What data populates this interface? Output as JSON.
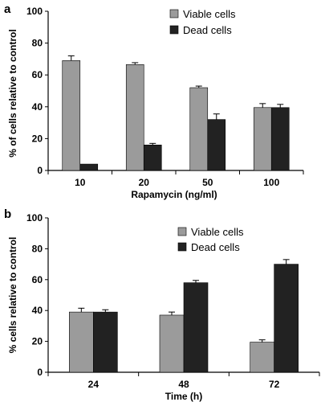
{
  "chart_data": [
    {
      "type": "bar",
      "panel_label": "a",
      "categories": [
        "10",
        "20",
        "50",
        "100"
      ],
      "series": [
        {
          "name": "Viable cells",
          "values": [
            69,
            66.5,
            52,
            39.5
          ],
          "errors": [
            3,
            1.2,
            1,
            2.5
          ],
          "color": "#9b9b9b"
        },
        {
          "name": "Dead cells",
          "values": [
            4,
            16,
            32,
            39.5
          ],
          "errors": [
            0,
            1,
            3.5,
            2
          ],
          "color": "#222222"
        }
      ],
      "xlabel": "Rapamycin (ng/ml)",
      "ylabel": "% of cells relative to control",
      "ylim": [
        0,
        100
      ],
      "yticks": [
        0,
        20,
        40,
        60,
        80,
        100
      ],
      "legend": "top-right",
      "grid": false
    },
    {
      "type": "bar",
      "panel_label": "b",
      "categories": [
        "24",
        "48",
        "72"
      ],
      "series": [
        {
          "name": "Viable cells",
          "values": [
            39,
            37,
            19.5
          ],
          "errors": [
            2.5,
            2,
            1.5
          ],
          "color": "#9b9b9b"
        },
        {
          "name": "Dead cells",
          "values": [
            39,
            58,
            70
          ],
          "errors": [
            1.5,
            1.5,
            3
          ],
          "color": "#222222"
        }
      ],
      "xlabel": "Time (h)",
      "ylabel": "% cells relative to control",
      "ylim": [
        0,
        100
      ],
      "yticks": [
        0,
        20,
        40,
        60,
        80,
        100
      ],
      "legend": "top-right",
      "grid": false
    }
  ]
}
